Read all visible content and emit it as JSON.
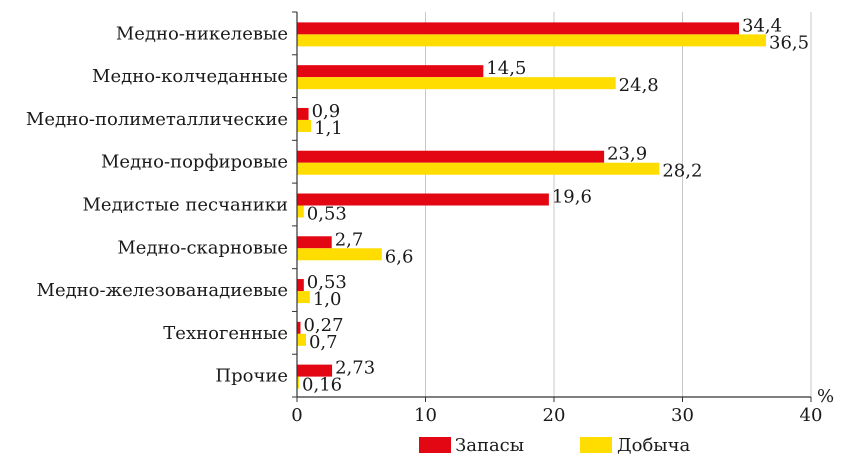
{
  "chart_data": {
    "type": "bar",
    "orientation": "horizontal",
    "categories": [
      "Медно-никелевые",
      "Медно-колчеданные",
      "Медно-полиметаллические",
      "Медно-порфировые",
      "Медистые песчаники",
      "Медно-скарновые",
      "Медно-железованадиевые",
      "Техногенные",
      "Прочие"
    ],
    "series": [
      {
        "name": "Запасы",
        "color": "#e30613",
        "values": [
          34.4,
          14.5,
          0.9,
          23.9,
          19.6,
          2.7,
          0.53,
          0.27,
          2.73
        ],
        "labels": [
          "34,4",
          "14,5",
          "0,9",
          "23,9",
          "19,6",
          "2,7",
          "0,53",
          "0,27",
          "2,73"
        ]
      },
      {
        "name": "Добыча",
        "color": "#ffdd00",
        "values": [
          36.5,
          24.8,
          1.1,
          28.2,
          0.53,
          6.6,
          1.0,
          0.7,
          0.16
        ],
        "labels": [
          "36,5",
          "24,8",
          "1,1",
          "28,2",
          "0,53",
          "6,6",
          "1,0",
          "0,7",
          "0,16"
        ]
      }
    ],
    "xlim": [
      0,
      40
    ],
    "xticks": [
      0,
      10,
      20,
      30,
      40
    ],
    "xtick_labels": [
      "0",
      "10",
      "20",
      "30",
      "40"
    ],
    "xunit": "%",
    "grid": "vertical",
    "legend_position": "bottom"
  }
}
